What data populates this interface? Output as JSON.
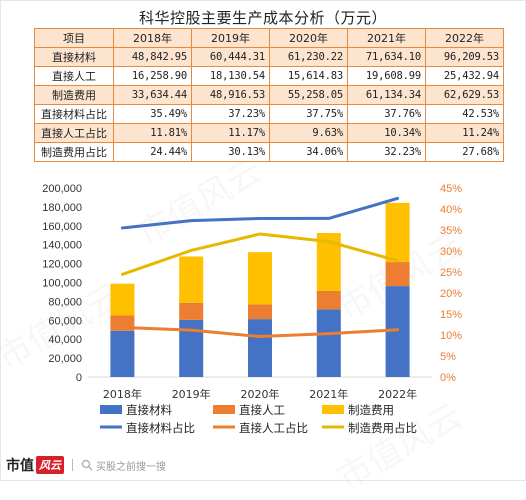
{
  "title": "科华控股主要生产成本分析（万元）",
  "table": {
    "headers": [
      "项目",
      "2018年",
      "2019年",
      "2020年",
      "2021年",
      "2022年"
    ],
    "rows": [
      {
        "label": "直接材料",
        "values": [
          "48,842.95",
          "60,444.31",
          "61,230.22",
          "71,634.10",
          "96,209.53"
        ]
      },
      {
        "label": "直接人工",
        "values": [
          "16,258.90",
          "18,130.54",
          "15,614.83",
          "19,608.99",
          "25,432.94"
        ]
      },
      {
        "label": "制造费用",
        "values": [
          "33,634.44",
          "48,916.53",
          "55,258.05",
          "61,134.34",
          "62,629.53"
        ]
      },
      {
        "label": "直接材料占比",
        "values": [
          "35.49%",
          "37.23%",
          "37.75%",
          "37.76%",
          "42.53%"
        ]
      },
      {
        "label": "直接人工占比",
        "values": [
          "11.81%",
          "11.17%",
          "9.63%",
          "10.34%",
          "11.24%"
        ]
      },
      {
        "label": "制造费用占比",
        "values": [
          "24.44%",
          "30.13%",
          "34.06%",
          "32.23%",
          "27.68%"
        ]
      }
    ]
  },
  "chart_data": {
    "type": "bar",
    "stacked": true,
    "categories": [
      "2018年",
      "2019年",
      "2020年",
      "2021年",
      "2022年"
    ],
    "series": [
      {
        "name": "直接材料",
        "type": "bar",
        "axis": "left",
        "color": "#4472c4",
        "values": [
          48842.95,
          60444.31,
          61230.22,
          71634.1,
          96209.53
        ]
      },
      {
        "name": "直接人工",
        "type": "bar",
        "axis": "left",
        "color": "#ed7d31",
        "values": [
          16258.9,
          18130.54,
          15614.83,
          19608.99,
          25432.94
        ]
      },
      {
        "name": "制造费用",
        "type": "bar",
        "axis": "left",
        "color": "#ffc000",
        "values": [
          33634.44,
          48916.53,
          55258.05,
          61134.34,
          62629.53
        ]
      },
      {
        "name": "直接材料占比",
        "type": "line",
        "axis": "right",
        "color": "#4472c4",
        "values": [
          35.49,
          37.23,
          37.75,
          37.76,
          42.53
        ]
      },
      {
        "name": "直接人工占比",
        "type": "line",
        "axis": "right",
        "color": "#ed7d31",
        "values": [
          11.81,
          11.17,
          9.63,
          10.34,
          11.24
        ]
      },
      {
        "name": "制造费用占比",
        "type": "line",
        "axis": "right",
        "color": "#e6b800",
        "values": [
          24.44,
          30.13,
          34.06,
          32.23,
          27.68
        ]
      }
    ],
    "y_left": {
      "ylim": [
        0,
        200000
      ],
      "ticks": [
        "0",
        "20,000",
        "40,000",
        "60,000",
        "80,000",
        "100,000",
        "120,000",
        "140,000",
        "160,000",
        "180,000",
        "200,000"
      ]
    },
    "y_right": {
      "ylim": [
        0,
        45
      ],
      "ticks": [
        "0%",
        "5%",
        "10%",
        "15%",
        "20%",
        "25%",
        "30%",
        "35%",
        "40%",
        "45%"
      ],
      "color": "#ed7d31"
    },
    "grid": false,
    "legend": "bottom"
  },
  "footer": {
    "brand": "市值",
    "brand_stamp": "风云",
    "slogan": "买股之前搜一搜",
    "icon": "search-icon"
  },
  "watermark": "市值风云"
}
